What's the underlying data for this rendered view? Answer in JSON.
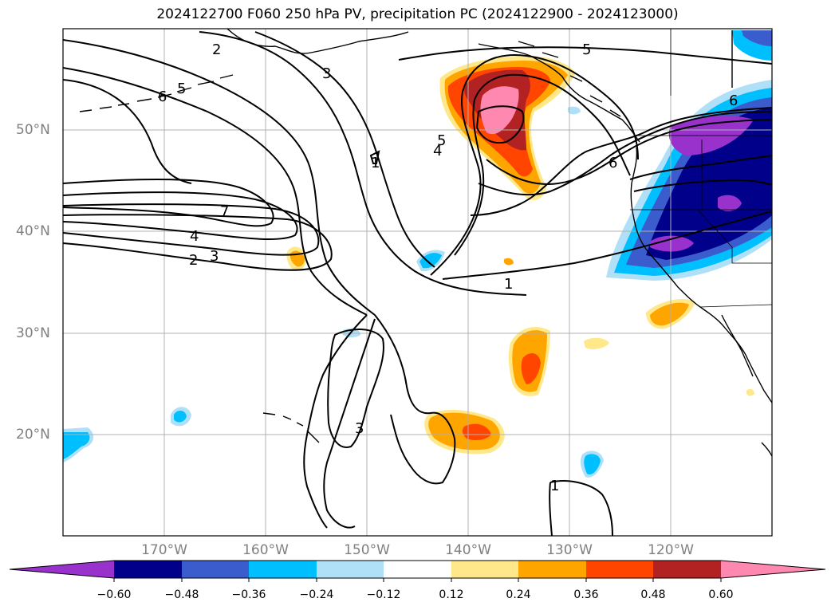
{
  "title": "2024122700 F060 250 hPa PV, precipitation PC (2024122900 - 2024123000)",
  "map": {
    "projection": "PlateCarree",
    "lon_range": [
      -180,
      -110
    ],
    "lat_range": [
      10,
      60
    ],
    "gridlines": true,
    "lon_labels": [
      "170°W",
      "160°W",
      "150°W",
      "140°W",
      "130°W",
      "120°W"
    ],
    "lat_labels": [
      "50°N",
      "40°N",
      "30°N",
      "20°N"
    ],
    "pv_contour_levels": [
      1,
      2,
      3,
      4,
      5,
      6,
      7
    ],
    "pv_contour_labels": [
      "2",
      "3",
      "5",
      "6",
      "7",
      "4",
      "3",
      "2",
      "5",
      "4",
      "6",
      "6",
      "5",
      "1",
      "1",
      "3",
      "1"
    ]
  },
  "colorbar": {
    "ticks": [
      "−0.60",
      "−0.48",
      "−0.36",
      "−0.24",
      "−0.12",
      "0.12",
      "0.24",
      "0.36",
      "0.48",
      "0.60"
    ],
    "colors": {
      "neg_extend": "#9932cc",
      "neg_060": "#00008b",
      "neg_048": "#3a5ccc",
      "neg_036": "#00bfff",
      "neg_024": "#b0e0f8",
      "neutral": "#ffffff",
      "pos_012": "#ffe88a",
      "pos_024": "#ffa500",
      "pos_036": "#ff4500",
      "pos_048": "#b22222",
      "pos_extend": "#ff88b0"
    }
  }
}
